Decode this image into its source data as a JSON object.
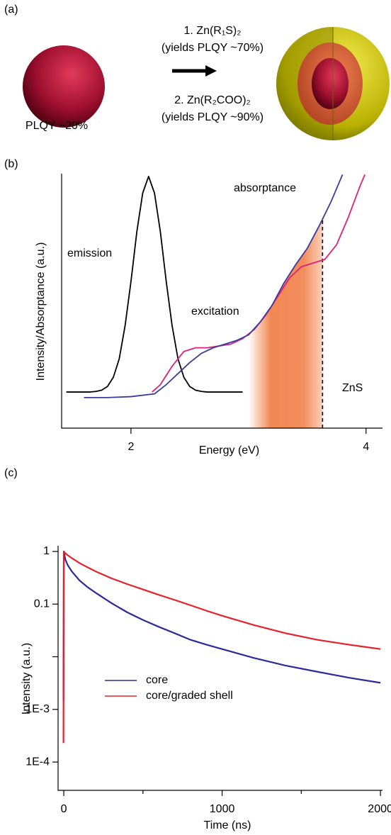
{
  "panel_a": {
    "label": "(a)",
    "core_label": "PLQY ~20%",
    "steps": [
      {
        "reagent": "1. Zn(R₁S)₂",
        "result": "(yields PLQY ~70%)"
      },
      {
        "reagent": "2. Zn(R₂COO)₂",
        "result": "(yields PLQY ~90%)"
      }
    ]
  },
  "chart_data": [
    {
      "type": "line",
      "panel_label": "(b)",
      "x_label": "Energy (eV)",
      "y_label": "Intensity/Absorptance (a.u.)",
      "xlim": [
        1.41,
        4.14
      ],
      "ylim": [
        -0.196,
        1.185
      ],
      "xticks": [
        2,
        4
      ],
      "shaded_xrange": [
        3.0,
        3.63
      ],
      "shaded_color": "#f07a40",
      "annotations": [
        {
          "text": "emission",
          "color": "#000000"
        },
        {
          "text": "excitation",
          "color": "#e0207a"
        },
        {
          "text": "absorptance",
          "color": "#3b3b9a"
        },
        {
          "text": "ZnS",
          "color": "#000000"
        }
      ],
      "series": [
        {
          "name": "emission",
          "color": "#000000",
          "x": [
            1.45,
            1.5,
            1.55,
            1.6,
            1.65,
            1.7,
            1.75,
            1.8,
            1.85,
            1.9,
            1.95,
            2.0,
            2.05,
            2.1,
            2.15,
            2.2,
            2.25,
            2.3,
            2.35,
            2.4,
            2.45,
            2.5,
            2.55,
            2.6,
            2.65,
            2.7,
            2.75,
            2.8,
            2.85,
            2.9,
            2.95
          ],
          "values": [
            0,
            0,
            0,
            0,
            0,
            0.003,
            0.01,
            0.03,
            0.08,
            0.18,
            0.36,
            0.6,
            0.87,
            1.08,
            1.17,
            1.08,
            0.87,
            0.6,
            0.36,
            0.18,
            0.08,
            0.03,
            0.01,
            0.003,
            0,
            0,
            0,
            0,
            0,
            0,
            0
          ]
        },
        {
          "name": "excitation",
          "color": "#e0207a",
          "x": [
            2.18,
            2.25,
            2.35,
            2.45,
            2.55,
            2.65,
            2.75,
            2.85,
            2.95,
            3.05,
            3.15,
            3.25,
            3.35,
            3.45,
            3.55,
            3.65,
            3.75,
            3.85,
            3.95,
            3.99
          ],
          "values": [
            0,
            0.04,
            0.14,
            0.22,
            0.24,
            0.24,
            0.25,
            0.26,
            0.29,
            0.34,
            0.42,
            0.52,
            0.62,
            0.68,
            0.7,
            0.72,
            0.8,
            0.95,
            1.12,
            1.18
          ]
        },
        {
          "name": "absorptance",
          "color": "#3b3b9a",
          "x": [
            1.6,
            1.8,
            2.0,
            2.2,
            2.3,
            2.4,
            2.5,
            2.6,
            2.7,
            2.8,
            2.9,
            3.0,
            3.1,
            3.2,
            3.3,
            3.4,
            3.5,
            3.6,
            3.7,
            3.8
          ],
          "values": [
            -0.03,
            -0.03,
            -0.025,
            -0.01,
            0.04,
            0.1,
            0.16,
            0.21,
            0.24,
            0.26,
            0.28,
            0.31,
            0.38,
            0.47,
            0.59,
            0.69,
            0.78,
            0.9,
            1.03,
            1.18
          ]
        }
      ]
    },
    {
      "type": "line",
      "panel_label": "(c)",
      "x_label": "Time (ns)",
      "y_label": "Intensity (a.u.)",
      "log_y": true,
      "xlim": [
        -36,
        2013
      ],
      "ylim": [
        2.9e-05,
        1.28
      ],
      "xticks": [
        0,
        1000,
        2000
      ],
      "minor_xticks": [
        500,
        1500
      ],
      "yticks": [
        1,
        0.1,
        {
          "value": 0.001,
          "label": "1E-3"
        },
        {
          "value": 0.0001,
          "label": "1E-4"
        }
      ],
      "minor_yticks": [
        0.01
      ],
      "legend": "lower left",
      "series": [
        {
          "name": "core",
          "color": "#2a2a9a",
          "x": [
            -2,
            0,
            10,
            25,
            50,
            100,
            150,
            200,
            300,
            400,
            500,
            600,
            700,
            800,
            900,
            1000,
            1200,
            1400,
            1600,
            1800,
            2000
          ],
          "values": [
            0.0015,
            1,
            0.7,
            0.55,
            0.42,
            0.28,
            0.21,
            0.165,
            0.105,
            0.07,
            0.05,
            0.037,
            0.028,
            0.021,
            0.017,
            0.014,
            0.0095,
            0.0068,
            0.0052,
            0.004,
            0.0032
          ]
        },
        {
          "name": "core/graded shell",
          "color": "#e8202a",
          "x": [
            -2,
            0,
            10,
            25,
            50,
            100,
            150,
            200,
            300,
            400,
            500,
            600,
            700,
            800,
            900,
            1000,
            1200,
            1400,
            1600,
            1800,
            2000
          ],
          "values": [
            0.00023,
            1,
            0.92,
            0.85,
            0.75,
            0.6,
            0.5,
            0.42,
            0.31,
            0.24,
            0.19,
            0.15,
            0.12,
            0.095,
            0.075,
            0.06,
            0.04,
            0.028,
            0.021,
            0.017,
            0.014
          ]
        }
      ]
    }
  ]
}
